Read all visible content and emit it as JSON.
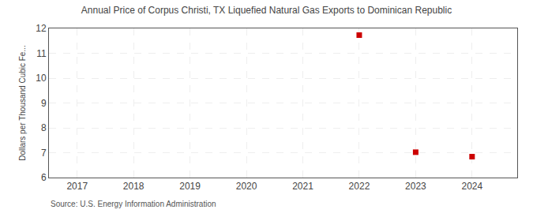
{
  "chart_data": {
    "type": "scatter",
    "title": "Annual Price of Corpus Christi, TX Liquefied Natural Gas Exports to Dominican Republic",
    "ylabel": "Dollars per Thousand Cubic Fe...",
    "annotations": [
      "Source: U.S. Energy Information Administration"
    ],
    "x": [
      2022,
      2023,
      2024
    ],
    "values": [
      11.73,
      7.02,
      6.84
    ],
    "color": "#cc0000",
    "marker": "square",
    "xlim": [
      2016.5,
      2024.8
    ],
    "ylim": [
      6,
      12
    ],
    "xticks": [
      2017,
      2018,
      2019,
      2020,
      2021,
      2022,
      2023,
      2024
    ],
    "yticks": [
      6,
      7,
      8,
      9,
      10,
      11,
      12
    ],
    "grid": true
  }
}
